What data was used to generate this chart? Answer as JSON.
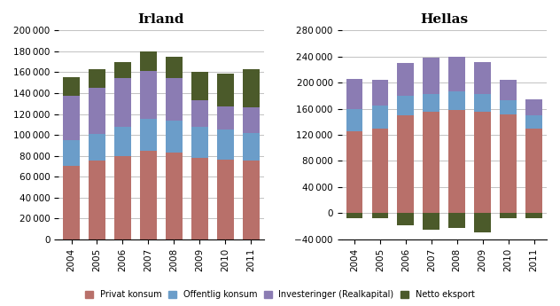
{
  "irland": {
    "title": "Irland",
    "years": [
      2004,
      2005,
      2006,
      2007,
      2008,
      2009,
      2010,
      2011
    ],
    "privat_konsum": [
      70000,
      75000,
      80000,
      85000,
      83000,
      78000,
      76000,
      75000
    ],
    "offentlig_konsum": [
      25000,
      26000,
      28000,
      30000,
      31000,
      30000,
      29000,
      27000
    ],
    "investeringer": [
      42000,
      44000,
      46000,
      46000,
      40000,
      25000,
      22000,
      24000
    ],
    "netto_eksport": [
      18000,
      18000,
      16000,
      19000,
      21000,
      27000,
      32000,
      37000
    ],
    "ylim": [
      0,
      200000
    ],
    "yticks": [
      0,
      20000,
      40000,
      60000,
      80000,
      100000,
      120000,
      140000,
      160000,
      180000,
      200000
    ]
  },
  "hellas": {
    "title": "Hellas",
    "years": [
      2004,
      2005,
      2006,
      2007,
      2008,
      2009,
      2010,
      2011
    ],
    "privat_konsum": [
      126000,
      130000,
      150000,
      155000,
      158000,
      155000,
      152000,
      130000
    ],
    "offentlig_konsum": [
      34000,
      35000,
      30000,
      28000,
      28000,
      27000,
      21000,
      20000
    ],
    "investeringer": [
      46000,
      40000,
      50000,
      55000,
      54000,
      50000,
      32000,
      25000
    ],
    "netto_eksport": [
      -8000,
      -8000,
      -18000,
      -25000,
      -22000,
      -30000,
      -8000,
      -8000
    ],
    "ylim": [
      -40000,
      280000
    ],
    "yticks": [
      -40000,
      0,
      40000,
      80000,
      120000,
      160000,
      200000,
      240000,
      280000
    ]
  },
  "colors": {
    "privat_konsum": "#B8706A",
    "offentlig_konsum": "#6B9DC9",
    "investeringer": "#8B7CB3",
    "netto_eksport": "#4B5A2A"
  },
  "legend_labels": [
    "Privat konsum",
    "Offentlig konsum",
    "Investeringer (Realkapital)",
    "Netto eksport"
  ],
  "figsize": [
    6.32,
    3.45
  ],
  "dpi": 100
}
